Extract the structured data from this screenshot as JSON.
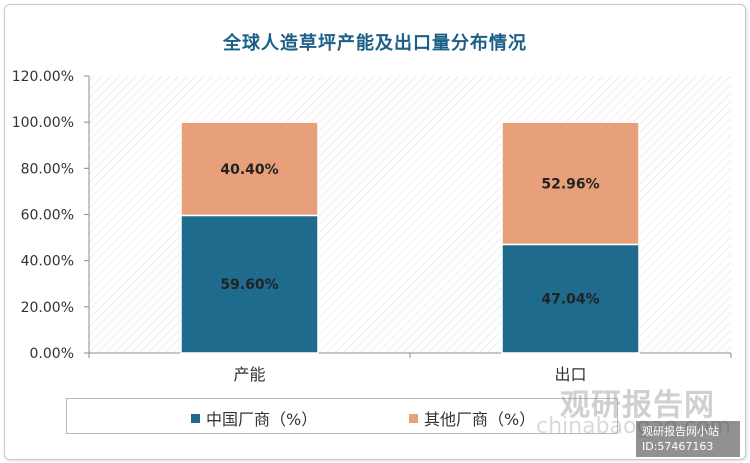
{
  "chart_data": {
    "type": "bar",
    "stacked": true,
    "title": "全球人造草坪产能及出口量分布情况",
    "categories": [
      "产能",
      "出口"
    ],
    "series": [
      {
        "name": "中国厂商（%）",
        "values": [
          59.6,
          47.04
        ],
        "labels": [
          "59.60%",
          "47.04%"
        ],
        "color": "#1e6b8e"
      },
      {
        "name": "其他厂商（%）",
        "values": [
          40.4,
          52.96
        ],
        "labels": [
          "40.40%",
          "52.96%"
        ],
        "color": "#e8a07b"
      }
    ],
    "ylim": [
      0,
      120
    ],
    "yticks": [
      "0.00%",
      "20.00%",
      "40.00%",
      "60.00%",
      "80.00%",
      "100.00%",
      "120.00%"
    ],
    "xlabel": "",
    "ylabel": "",
    "grid": true,
    "legend_position": "bottom"
  },
  "watermark": {
    "brand": "观研报告网",
    "url": "chinabaogao.com",
    "badge_line1": "观研报告网小站",
    "badge_line2": "ID:57467163"
  }
}
